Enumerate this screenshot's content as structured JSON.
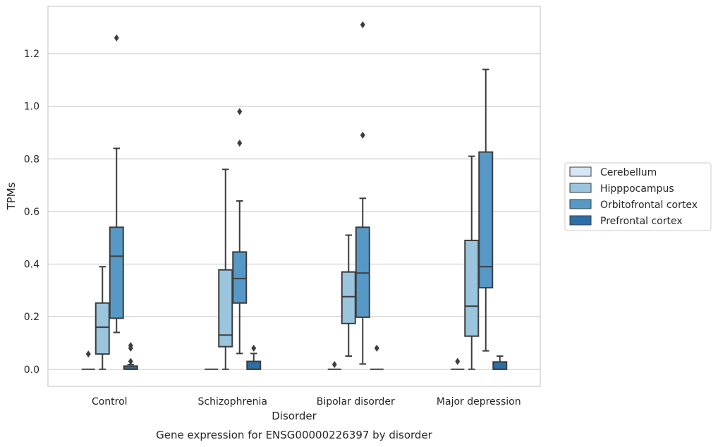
{
  "chart_data": {
    "type": "box",
    "caption": "Gene expression for ENSG00000226397 by disorder",
    "xlabel": "Disorder",
    "ylabel": "TPMs",
    "ylim": [
      -0.065,
      1.38
    ],
    "yticks": [
      "0.0",
      "0.2",
      "0.4",
      "0.6",
      "0.8",
      "1.0",
      "1.2"
    ],
    "grid": "horizontal",
    "legend_position": "right",
    "categories": [
      "Control",
      "Schizophrenia",
      "Bipolar disorder",
      "Major depression"
    ],
    "series": [
      {
        "name": "Cerebellum",
        "color": "#d6e6f4",
        "boxes": [
          {
            "q1": 0,
            "median": 0,
            "q3": 0,
            "whisker_low": 0,
            "whisker_high": 0,
            "outliers": [
              0.058
            ]
          },
          {
            "q1": 0,
            "median": 0,
            "q3": 0,
            "whisker_low": 0,
            "whisker_high": 0,
            "outliers": []
          },
          {
            "q1": 0,
            "median": 0,
            "q3": 0,
            "whisker_low": 0,
            "whisker_high": 0,
            "outliers": [
              0.018
            ]
          },
          {
            "q1": 0,
            "median": 0,
            "q3": 0,
            "whisker_low": 0,
            "whisker_high": 0,
            "outliers": [
              0.03
            ]
          }
        ]
      },
      {
        "name": "Hipppocampus",
        "color": "#9ac5dd",
        "boxes": [
          {
            "q1": 0.058,
            "median": 0.16,
            "q3": 0.252,
            "whisker_low": 0,
            "whisker_high": 0.39,
            "outliers": []
          },
          {
            "q1": 0.086,
            "median": 0.13,
            "q3": 0.378,
            "whisker_low": 0,
            "whisker_high": 0.76,
            "outliers": []
          },
          {
            "q1": 0.174,
            "median": 0.276,
            "q3": 0.37,
            "whisker_low": 0.05,
            "whisker_high": 0.51,
            "outliers": []
          },
          {
            "q1": 0.126,
            "median": 0.24,
            "q3": 0.49,
            "whisker_low": 0,
            "whisker_high": 0.81,
            "outliers": []
          }
        ]
      },
      {
        "name": "Orbitofrontal cortex",
        "color": "#5799c6",
        "boxes": [
          {
            "q1": 0.194,
            "median": 0.43,
            "q3": 0.54,
            "whisker_low": 0.14,
            "whisker_high": 0.84,
            "outliers": [
              1.26
            ]
          },
          {
            "q1": 0.252,
            "median": 0.345,
            "q3": 0.446,
            "whisker_low": 0.06,
            "whisker_high": 0.64,
            "outliers": [
              0.86,
              0.98
            ]
          },
          {
            "q1": 0.198,
            "median": 0.366,
            "q3": 0.54,
            "whisker_low": 0.02,
            "whisker_high": 0.65,
            "outliers": [
              0.89,
              1.31
            ]
          },
          {
            "q1": 0.31,
            "median": 0.39,
            "q3": 0.826,
            "whisker_low": 0.07,
            "whisker_high": 1.14,
            "outliers": []
          }
        ]
      },
      {
        "name": "Prefrontal cortex",
        "color": "#2b6ea8",
        "boxes": [
          {
            "q1": 0,
            "median": 0,
            "q3": 0.012,
            "whisker_low": 0,
            "whisker_high": 0.018,
            "outliers": [
              0.03,
              0.08,
              0.09
            ]
          },
          {
            "q1": 0,
            "median": 0,
            "q3": 0.03,
            "whisker_low": 0,
            "whisker_high": 0.06,
            "outliers": [
              0.08
            ]
          },
          {
            "q1": 0,
            "median": 0,
            "q3": 0,
            "whisker_low": 0,
            "whisker_high": 0,
            "outliers": [
              0.08
            ]
          },
          {
            "q1": 0,
            "median": 0,
            "q3": 0.028,
            "whisker_low": 0,
            "whisker_high": 0.05,
            "outliers": []
          }
        ]
      }
    ]
  }
}
